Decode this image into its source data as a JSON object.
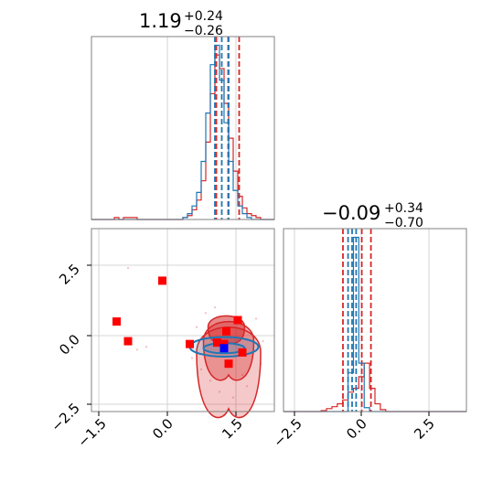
{
  "colors": {
    "red": "#d62728",
    "blue": "#1f77b4",
    "grid": "#c8c8c8",
    "frame": "#808080",
    "marker_red": "#ff0000",
    "marker_blue": "#0000ff"
  },
  "chart_data": {
    "type": "corner",
    "grid": true,
    "panels": [
      {
        "id": "hist_x",
        "type": "histogram",
        "xlim": [
          -1.8,
          2.2
        ],
        "title": {
          "main": "1.19",
          "sup": "+0.24",
          "sub": "−0.26"
        },
        "series": [
          {
            "name": "",
            "color": "#d62728",
            "bin_edges": [
              -1.8,
              -1.7,
              -1.6,
              -1.5,
              -1.4,
              -1.3,
              -1.2,
              -1.1,
              -1.0,
              -0.9,
              -0.8,
              -0.7,
              -0.6,
              -0.5,
              -0.4,
              -0.3,
              -0.2,
              -0.1,
              0.0,
              0.1,
              0.2,
              0.3,
              0.4,
              0.5,
              0.6,
              0.7,
              0.8,
              0.9,
              1.0,
              1.1,
              1.2,
              1.3,
              1.4,
              1.5,
              1.6,
              1.7,
              1.8,
              1.9,
              2.0,
              2.1,
              2.2
            ],
            "counts": [
              0,
              0,
              0,
              0,
              0,
              0.01,
              0,
              0.01,
              0.01,
              0.01,
              0,
              0,
              0,
              0,
              0,
              0,
              0,
              0,
              0,
              0,
              0.01,
              0.02,
              0.05,
              0.1,
              0.2,
              0.4,
              0.65,
              0.85,
              0.78,
              0.6,
              0.42,
              0.25,
              0.12,
              0.06,
              0.03,
              0.02,
              0.01,
              0,
              0,
              0
            ],
            "quantiles": [
              0.93,
              1.19,
              1.43
            ]
          },
          {
            "name": "",
            "color": "#1f77b4",
            "bin_edges": [
              -1.8,
              -1.7,
              -1.6,
              -1.5,
              -1.4,
              -1.3,
              -1.2,
              -1.1,
              -1.0,
              -0.9,
              -0.8,
              -0.7,
              -0.6,
              -0.5,
              -0.4,
              -0.3,
              -0.2,
              -0.1,
              0.0,
              0.1,
              0.2,
              0.3,
              0.4,
              0.5,
              0.6,
              0.7,
              0.8,
              0.9,
              1.0,
              1.1,
              1.2,
              1.3,
              1.4,
              1.5,
              1.6,
              1.7,
              1.8,
              1.9,
              2.0,
              2.1,
              2.2
            ],
            "counts": [
              0,
              0,
              0,
              0,
              0,
              0,
              0,
              0,
              0,
              0,
              0,
              0,
              0,
              0,
              0,
              0,
              0,
              0,
              0,
              0,
              0.01,
              0.03,
              0.07,
              0.14,
              0.3,
              0.55,
              0.8,
              0.9,
              0.72,
              0.5,
              0.3,
              0.15,
              0.07,
              0.03,
              0.01,
              0,
              0,
              0,
              0,
              0
            ],
            "quantiles": [
              0.9,
              1.05,
              1.2
            ]
          }
        ],
        "x_ticks": [
          -1.5,
          0.0,
          1.5
        ]
      },
      {
        "id": "hist_y",
        "type": "histogram",
        "xlim": [
          -3.0,
          3.8
        ],
        "title": {
          "main": "−0.09",
          "sup": "+0.34",
          "sub": "−0.70"
        },
        "series": [
          {
            "name": "",
            "color": "#d62728",
            "bin_edges": [
              -3.0,
              -2.8,
              -2.6,
              -2.4,
              -2.2,
              -2.0,
              -1.8,
              -1.6,
              -1.4,
              -1.2,
              -1.0,
              -0.8,
              -0.6,
              -0.4,
              -0.2,
              0.0,
              0.2,
              0.4,
              0.6,
              0.8,
              1.0,
              1.2,
              1.4,
              1.6,
              1.8,
              2.0,
              2.2,
              2.4,
              2.6,
              2.8,
              3.0,
              3.2,
              3.4,
              3.6,
              3.8
            ],
            "counts": [
              0,
              0,
              0,
              0,
              0,
              0,
              0,
              0.005,
              0.015,
              0.025,
              0.04,
              0.06,
              0.1,
              0.12,
              0.18,
              0.25,
              0.12,
              0.04,
              0.01,
              0,
              0,
              0,
              0,
              0,
              0,
              0,
              0,
              0,
              0,
              0,
              0,
              0,
              0,
              0
            ],
            "quantiles": [
              -0.79,
              -0.09,
              0.25
            ]
          },
          {
            "name": "",
            "color": "#1f77b4",
            "bin_edges": [
              -3.0,
              -2.8,
              -2.6,
              -2.4,
              -2.2,
              -2.0,
              -1.8,
              -1.6,
              -1.4,
              -1.2,
              -1.0,
              -0.8,
              -0.6,
              -0.4,
              -0.2,
              0.0,
              0.2,
              0.4,
              0.6,
              0.8,
              1.0,
              1.2,
              1.4,
              1.6,
              1.8,
              2.0,
              2.2,
              2.4,
              2.6,
              2.8,
              3.0,
              3.2,
              3.4,
              3.6,
              3.8
            ],
            "counts": [
              0,
              0,
              0,
              0,
              0,
              0,
              0,
              0,
              0,
              0,
              0,
              0,
              0.2,
              0.9,
              0.25,
              0.02,
              0,
              0,
              0,
              0,
              0,
              0,
              0,
              0,
              0,
              0,
              0,
              0,
              0,
              0,
              0,
              0,
              0,
              0
            ],
            "quantiles": [
              -0.6,
              -0.45,
              -0.3
            ]
          }
        ],
        "x_ticks": [
          -2.5,
          0.0,
          2.5
        ],
        "x_tick_labels": [
          "−2.5",
          "0.0",
          "2.5"
        ]
      },
      {
        "id": "joint_xy",
        "type": "contour-scatter",
        "xlim": [
          -1.8,
          2.2
        ],
        "ylim": [
          -2.7,
          3.8
        ],
        "x_ticks": [
          -1.5,
          0.0,
          1.5
        ],
        "x_tick_labels": [
          "−1.5",
          "0.0",
          "1.5"
        ],
        "y_ticks": [
          -2.5,
          0.0,
          2.5
        ],
        "y_tick_labels": [
          "−2.5",
          "0.0",
          "2.5"
        ],
        "red_contours": [
          {
            "level": "outer",
            "cx": 1.2,
            "cy": -0.6,
            "rx": 0.7,
            "ry_top": 0.9,
            "ry_bottom": 2.0
          },
          {
            "level": "middle",
            "cx": 1.2,
            "cy": -0.2,
            "rx": 0.55,
            "ry_top": 0.7,
            "ry_bottom": 1.2
          },
          {
            "level": "inner",
            "cx": 1.15,
            "cy": 0.3,
            "rx": 0.4,
            "ry_top": 0.4,
            "ry_bottom": 0.5
          }
        ],
        "blue_contours": [
          {
            "level": "outer",
            "cx": 1.1,
            "cy": -0.4,
            "rx": 0.75,
            "ry": 0.35
          },
          {
            "level": "inner",
            "cx": 1.1,
            "cy": -0.45,
            "rx": 0.45,
            "ry": 0.18
          }
        ],
        "red_markers": [
          {
            "x": -1.25,
            "y": 0.5
          },
          {
            "x": -1.0,
            "y": -0.2
          },
          {
            "x": -0.25,
            "y": 1.95
          },
          {
            "x": 0.35,
            "y": -0.3
          },
          {
            "x": 0.95,
            "y": -0.25
          },
          {
            "x": 1.1,
            "y": -0.3
          },
          {
            "x": 1.15,
            "y": 0.15
          },
          {
            "x": 1.4,
            "y": 0.55
          },
          {
            "x": 1.5,
            "y": -0.6
          },
          {
            "x": 1.2,
            "y": -1.0
          }
        ],
        "blue_markers": [
          {
            "x": 1.1,
            "y": -0.45
          }
        ]
      }
    ]
  }
}
